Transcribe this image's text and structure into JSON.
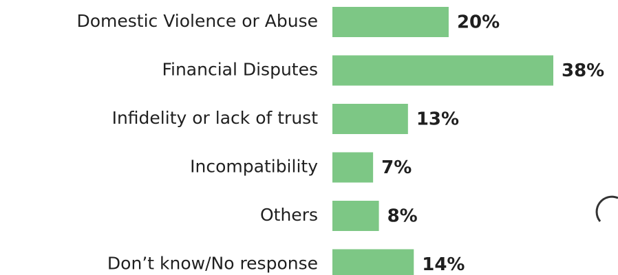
{
  "chart_data": {
    "type": "bar",
    "orientation": "horizontal",
    "categories": [
      "Domestic Violence or Abuse",
      "Financial Disputes",
      "Infidelity or lack of trust",
      "Incompatibility",
      "Others",
      "Don’t know/No response"
    ],
    "values": [
      20,
      38,
      13,
      7,
      8,
      14
    ],
    "value_labels": [
      "20%",
      "38%",
      "13%",
      "7%",
      "8%",
      "14%"
    ],
    "color": "#7dc785"
  }
}
